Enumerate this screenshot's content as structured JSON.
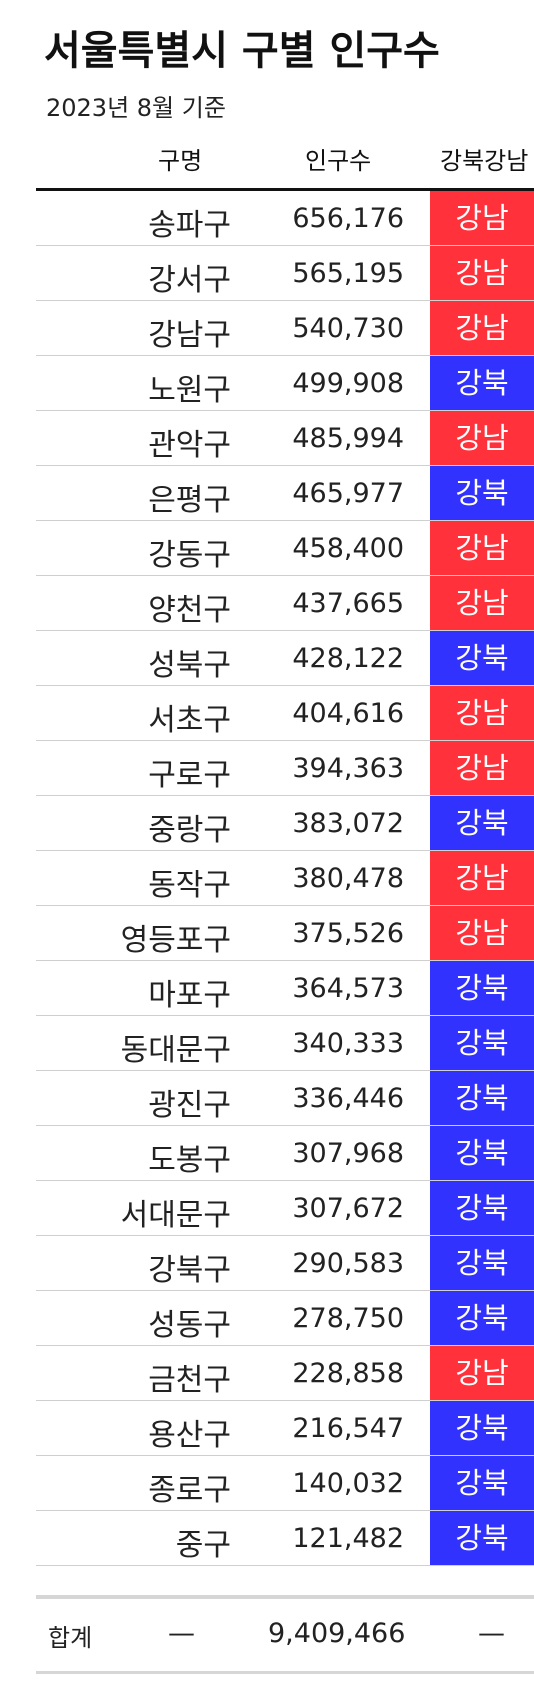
{
  "title": "서울특별시 구별 인구수",
  "subtitle": "2023년 8월 기준",
  "headers": {
    "name": "구명",
    "population": "인구수",
    "region": "강북강남"
  },
  "colors": {
    "강남": "#ff323c",
    "강북": "#3232ff"
  },
  "rows": [
    {
      "name": "송파구",
      "population": "656,176",
      "region": "강남"
    },
    {
      "name": "강서구",
      "population": "565,195",
      "region": "강남"
    },
    {
      "name": "강남구",
      "population": "540,730",
      "region": "강남"
    },
    {
      "name": "노원구",
      "population": "499,908",
      "region": "강북"
    },
    {
      "name": "관악구",
      "population": "485,994",
      "region": "강남"
    },
    {
      "name": "은평구",
      "population": "465,977",
      "region": "강북"
    },
    {
      "name": "강동구",
      "population": "458,400",
      "region": "강남"
    },
    {
      "name": "양천구",
      "population": "437,665",
      "region": "강남"
    },
    {
      "name": "성북구",
      "population": "428,122",
      "region": "강북"
    },
    {
      "name": "서초구",
      "population": "404,616",
      "region": "강남"
    },
    {
      "name": "구로구",
      "population": "394,363",
      "region": "강남"
    },
    {
      "name": "중랑구",
      "population": "383,072",
      "region": "강북"
    },
    {
      "name": "동작구",
      "population": "380,478",
      "region": "강남"
    },
    {
      "name": "영등포구",
      "population": "375,526",
      "region": "강남"
    },
    {
      "name": "마포구",
      "population": "364,573",
      "region": "강북"
    },
    {
      "name": "동대문구",
      "population": "340,333",
      "region": "강북"
    },
    {
      "name": "광진구",
      "population": "336,446",
      "region": "강북"
    },
    {
      "name": "도봉구",
      "population": "307,968",
      "region": "강북"
    },
    {
      "name": "서대문구",
      "population": "307,672",
      "region": "강북"
    },
    {
      "name": "강북구",
      "population": "290,583",
      "region": "강북"
    },
    {
      "name": "성동구",
      "population": "278,750",
      "region": "강북"
    },
    {
      "name": "금천구",
      "population": "228,858",
      "region": "강남"
    },
    {
      "name": "용산구",
      "population": "216,547",
      "region": "강북"
    },
    {
      "name": "종로구",
      "population": "140,032",
      "region": "강북"
    },
    {
      "name": "중구",
      "population": "121,482",
      "region": "강북"
    }
  ],
  "total": {
    "label": "합계",
    "name": "—",
    "population": "9,409,466",
    "region": "—"
  }
}
